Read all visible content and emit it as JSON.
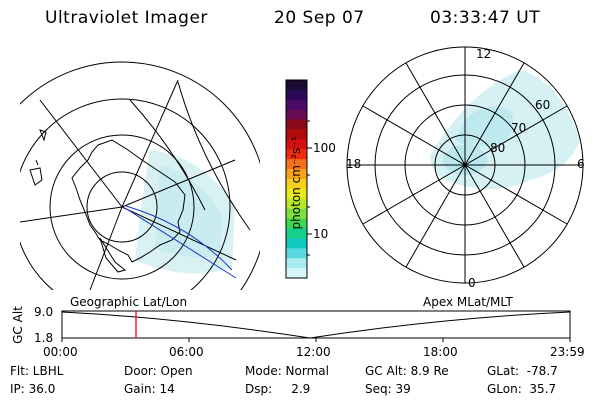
{
  "header": {
    "instrument": "Ultraviolet Imager",
    "date": "20 Sep 07",
    "time": "03:33:47 UT"
  },
  "colorbar": {
    "unit_label": "photon cm⁻²s⁻¹",
    "tick_labels": [
      "100",
      "10"
    ],
    "colors_top_to_bottom": [
      "#1a0a33",
      "#2a0a55",
      "#4a0a66",
      "#6a0a55",
      "#8b0a1a",
      "#b10a0a",
      "#d41010",
      "#ee2a10",
      "#f5701a",
      "#f9a21c",
      "#f7d01c",
      "#e6ea1e",
      "#b6e82c",
      "#7ee03a",
      "#3ad850",
      "#17d08a",
      "#10c8c0",
      "#5ad8e0",
      "#a6ecf0",
      "#d6f6f8"
    ]
  },
  "left_map": {
    "label": "Geographic Lat/Lon"
  },
  "right_map": {
    "label": "Apex MLat/MLT",
    "mlt_labels": {
      "top": "12",
      "left": "18",
      "right": "6",
      "bottom": "0"
    },
    "mlat_labels": [
      "60",
      "70",
      "80"
    ]
  },
  "altitude_plot": {
    "ylabel": "GC Alt",
    "ytick_labels": [
      "9.0",
      "1.8"
    ],
    "xtick_labels": [
      "00:00",
      "06:00",
      "12:00",
      "18:00",
      "23:59"
    ],
    "marker_color": "#ff0000"
  },
  "footer": {
    "flt": "Flt: LBHL",
    "ip": "IP: 36.0",
    "door": "Door: Open",
    "gain": "Gain: 14",
    "mode": "Mode: Normal",
    "dsp": "Dsp:     2.9",
    "gc_alt": "GC Alt: 8.9 Re",
    "seq": "Seq: 39",
    "glat": "GLat:  -78.7",
    "glon": "GLon:  35.7"
  }
}
